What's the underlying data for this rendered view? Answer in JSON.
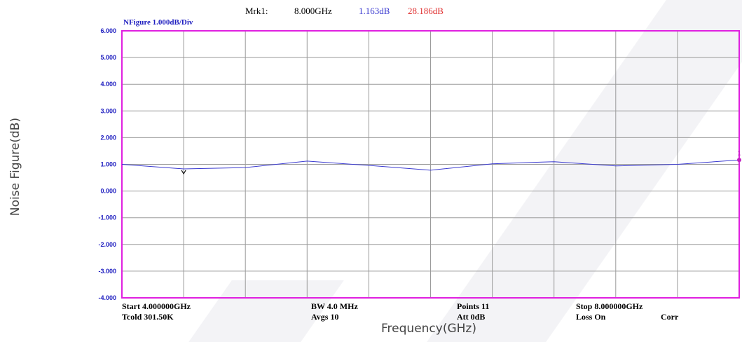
{
  "marker": {
    "label": "Mrk1:",
    "frequency": "8.000GHz",
    "value1": "1.163dB",
    "value2": "28.186dB",
    "value1_color": "#3a3ad0",
    "value2_color": "#e03030"
  },
  "trace_title": "NFigure   1.000dB/Div",
  "outer_ylabel": "Noise Figure(dB)",
  "outer_xlabel": "Frequency(GHz)",
  "footer": {
    "start": "Start   4.000000GHz",
    "tcold": "Tcold 301.50K",
    "bw": "BW  4.0  MHz",
    "avgs": "Avgs  10",
    "points": "Points  11",
    "att": "Att  0dB",
    "stop": "Stop  8.000000GHz",
    "loss": "Loss  On",
    "corr": "Corr"
  },
  "colors": {
    "frame": "#e020e0",
    "trace": "#3a3ad0",
    "grid": "#9a9a9a",
    "tick_text": "#2020c0",
    "marker_dot": "#c020c0"
  },
  "chart_data": {
    "type": "line",
    "x": [
      4.0,
      4.4,
      4.8,
      5.2,
      5.6,
      6.0,
      6.4,
      6.8,
      7.2,
      7.6,
      8.0
    ],
    "series": [
      {
        "name": "NFigure",
        "values": [
          1.0,
          0.83,
          0.88,
          1.12,
          0.96,
          0.78,
          1.02,
          1.1,
          0.94,
          1.0,
          1.163
        ]
      }
    ],
    "xlim": [
      4.0,
      8.0
    ],
    "ylim": [
      -4.0,
      6.0
    ],
    "yticks": [
      "6.000",
      "5.000",
      "4.000",
      "3.000",
      "2.000",
      "1.000",
      "0.000",
      "-1.000",
      "-2.000",
      "-3.000",
      "-4.000"
    ],
    "xlabel": "Frequency(GHz)",
    "ylabel": "Noise Figure(dB)",
    "grid": true,
    "marker_x": 4.4,
    "end_marker_label": "1"
  }
}
